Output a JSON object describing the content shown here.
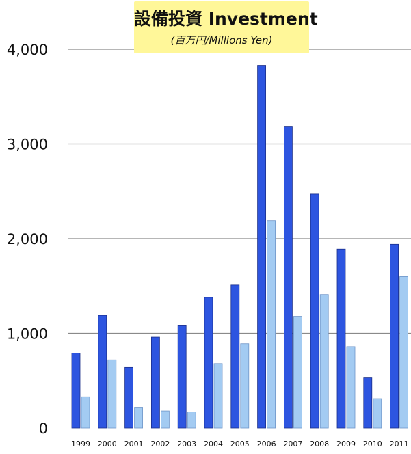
{
  "chart_data": {
    "type": "bar",
    "title": "設備投資 Investment",
    "subtitle": "(百万円/Millions Yen)",
    "xlabel": "",
    "ylabel": "",
    "ylim": [
      0,
      4000
    ],
    "yticks": [
      "0",
      "1,000",
      "2,000",
      "3,000",
      "4,000"
    ],
    "ytick_values": [
      0,
      1000,
      2000,
      3000,
      4000
    ],
    "grid": true,
    "legend": "none",
    "categories": [
      "1999",
      "2000",
      "2001",
      "2002",
      "2003",
      "2004",
      "2005",
      "2006",
      "2007",
      "2008",
      "2009",
      "2010",
      "2011"
    ],
    "series": [
      {
        "color": "#2d55e0",
        "values": [
          790,
          1190,
          640,
          960,
          1080,
          1380,
          1510,
          3830,
          3180,
          2470,
          1890,
          530,
          1940
        ]
      },
      {
        "color": "#a3cbf2",
        "values": [
          330,
          720,
          220,
          180,
          170,
          680,
          890,
          2190,
          1180,
          1410,
          860,
          310,
          1600
        ]
      }
    ]
  }
}
